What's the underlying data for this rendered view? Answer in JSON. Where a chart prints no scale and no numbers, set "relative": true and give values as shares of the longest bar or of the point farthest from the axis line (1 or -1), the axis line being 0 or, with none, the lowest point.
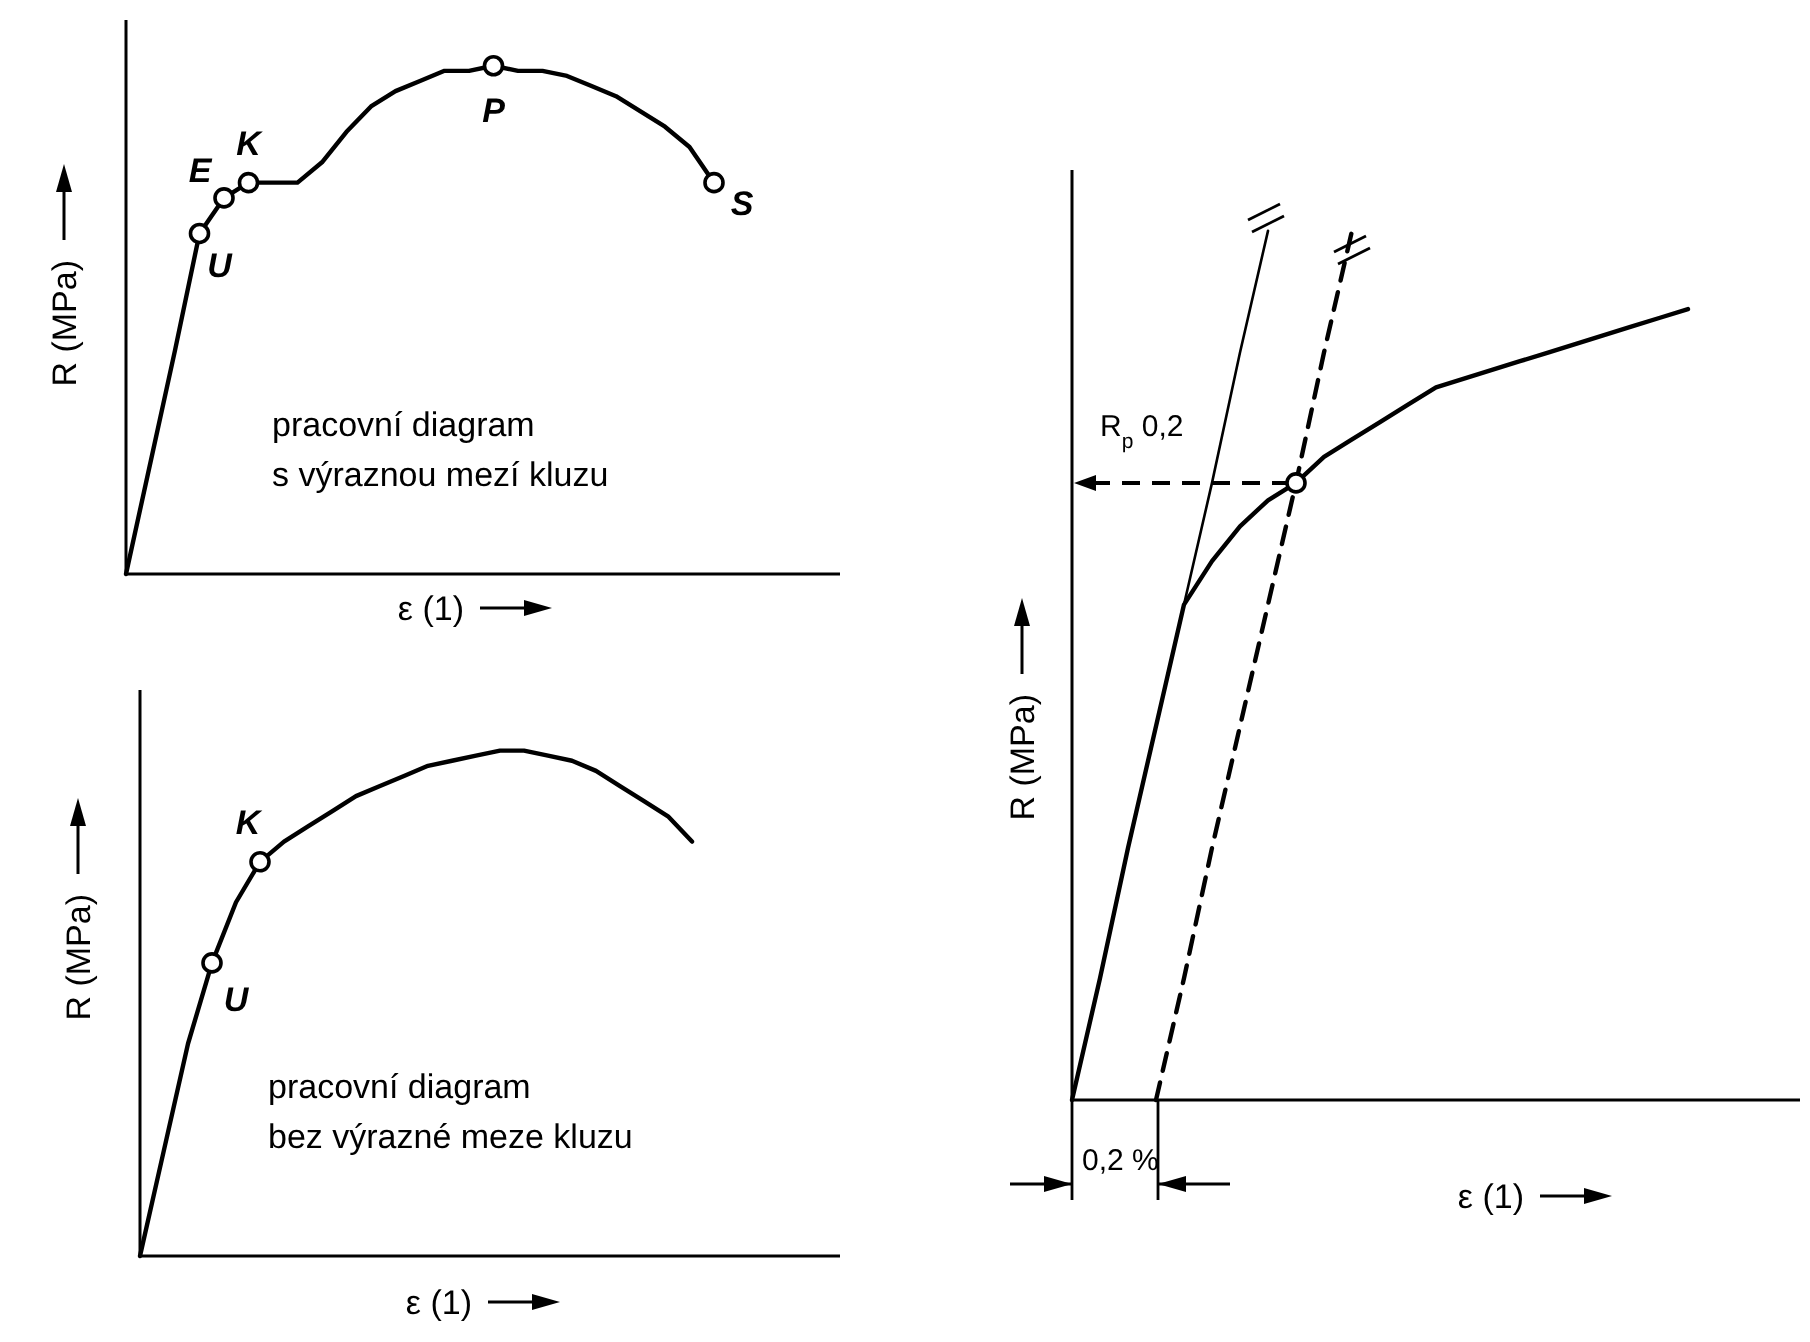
{
  "chart_data": [
    {
      "type": "line",
      "xlabel": "ε (1)",
      "ylabel": "R (MPa)",
      "relative": true,
      "annotations": [
        "pracovní diagram",
        "s výraznou mezí kluzu"
      ],
      "categories": [
        null,
        null,
        null,
        null,
        null,
        null,
        null,
        null,
        null,
        null,
        null,
        null,
        null,
        null,
        null,
        null,
        null,
        null,
        null,
        null,
        null,
        null,
        null,
        null,
        null
      ],
      "series": [
        {
          "color": "#000000",
          "values": [
            0,
            0.22,
            0.44,
            0.67,
            0.74,
            0.77,
            0.77,
            0.77,
            0.81,
            0.87,
            0.92,
            0.95,
            0.97,
            0.99,
            0.99,
            1,
            0.99,
            0.99,
            0.98,
            0.96,
            0.94,
            0.91,
            0.88,
            0.84,
            0.77
          ]
        },
        {
          "name": "U",
          "color": "#000000",
          "marker": "circle",
          "values": [
            null,
            null,
            null,
            0.67,
            null,
            null,
            null,
            null,
            null,
            null,
            null,
            null,
            null,
            null,
            null,
            null,
            null,
            null,
            null,
            null,
            null,
            null,
            null,
            null,
            null
          ]
        },
        {
          "name": "E",
          "color": "#000000",
          "marker": "circle",
          "values": [
            null,
            null,
            null,
            null,
            0.74,
            null,
            null,
            null,
            null,
            null,
            null,
            null,
            null,
            null,
            null,
            null,
            null,
            null,
            null,
            null,
            null,
            null,
            null,
            null,
            null
          ]
        },
        {
          "name": "K",
          "color": "#000000",
          "marker": "circle",
          "values": [
            null,
            null,
            null,
            null,
            null,
            0.77,
            null,
            null,
            null,
            null,
            null,
            null,
            null,
            null,
            null,
            null,
            null,
            null,
            null,
            null,
            null,
            null,
            null,
            null,
            null
          ]
        },
        {
          "name": "P",
          "color": "#000000",
          "marker": "circle",
          "values": [
            null,
            null,
            null,
            null,
            null,
            null,
            null,
            null,
            null,
            null,
            null,
            null,
            null,
            null,
            null,
            1,
            null,
            null,
            null,
            null,
            null,
            null,
            null,
            null,
            null
          ]
        },
        {
          "name": "S",
          "color": "#000000",
          "marker": "circle",
          "values": [
            null,
            null,
            null,
            null,
            null,
            null,
            null,
            null,
            null,
            null,
            null,
            null,
            null,
            null,
            null,
            null,
            null,
            null,
            null,
            null,
            null,
            null,
            null,
            null,
            0.77
          ]
        }
      ]
    },
    {
      "type": "line",
      "xlabel": "ε (1)",
      "ylabel": "R (MPa)",
      "relative": true,
      "annotations": [
        "pracovní diagram",
        "bez výrazné meze kluzu"
      ],
      "categories": [
        null,
        null,
        null,
        null,
        null,
        null,
        null,
        null,
        null,
        null,
        null,
        null,
        null,
        null,
        null,
        null,
        null,
        null,
        null,
        null,
        null,
        null,
        null,
        null
      ],
      "series": [
        {
          "color": "#000000",
          "values": [
            0,
            0.21,
            0.42,
            0.58,
            0.7,
            0.78,
            0.82,
            0.85,
            0.88,
            0.91,
            0.93,
            0.95,
            0.97,
            0.98,
            0.99,
            1,
            1,
            0.99,
            0.98,
            0.96,
            0.93,
            0.9,
            0.87,
            0.82
          ]
        },
        {
          "name": "U",
          "color": "#000000",
          "marker": "circle",
          "values": [
            null,
            null,
            null,
            0.58,
            null,
            null,
            null,
            null,
            null,
            null,
            null,
            null,
            null,
            null,
            null,
            null,
            null,
            null,
            null,
            null,
            null,
            null,
            null,
            null
          ]
        },
        {
          "name": "K",
          "color": "#000000",
          "marker": "circle",
          "values": [
            null,
            null,
            null,
            null,
            null,
            0.78,
            null,
            null,
            null,
            null,
            null,
            null,
            null,
            null,
            null,
            null,
            null,
            null,
            null,
            null,
            null,
            null,
            null,
            null
          ]
        }
      ]
    },
    {
      "type": "line",
      "xlabel": "ε (1)",
      "ylabel": "R (MPa)",
      "relative": true,
      "annotations": [
        "R$_{p}$0,2",
        "0,2 %"
      ],
      "categories": [
        null,
        null,
        null,
        null,
        null,
        null,
        null,
        null,
        null,
        null,
        null,
        null,
        null,
        null,
        null,
        null,
        null,
        null,
        null,
        null,
        null,
        null,
        null
      ],
      "series": [
        {
          "color": "#000000",
          "values": [
            0,
            0.14,
            0.29,
            0.43,
            0.57,
            0.62,
            0.66,
            0.69,
            0.71,
            0.74,
            0.76,
            0.78,
            0.8,
            0.82,
            0.83,
            0.84,
            0.85,
            0.86,
            0.87,
            0.88,
            0.89,
            0.9,
            0.91
          ]
        },
        {
          "color": "#000000",
          "values": [
            0,
            0.14,
            0.29,
            0.43,
            0.57,
            0.71,
            0.86,
            1,
            null,
            null,
            null,
            null,
            null,
            null,
            null,
            null,
            null,
            null,
            null,
            null,
            null,
            null,
            null
          ]
        },
        {
          "color": "#000000",
          "line_style": "dashed",
          "values": [
            null,
            null,
            null,
            0,
            0.14,
            0.29,
            0.43,
            0.57,
            0.71,
            0.86,
            1,
            null,
            null,
            null,
            null,
            null,
            null,
            null,
            null,
            null,
            null,
            null,
            null
          ]
        },
        {
          "color": "#000000",
          "marker": "circle",
          "values": [
            null,
            null,
            null,
            null,
            null,
            null,
            null,
            null,
            0.71,
            null,
            null,
            null,
            null,
            null,
            null,
            null,
            null,
            null,
            null,
            null,
            null,
            null,
            null
          ]
        }
      ]
    }
  ]
}
